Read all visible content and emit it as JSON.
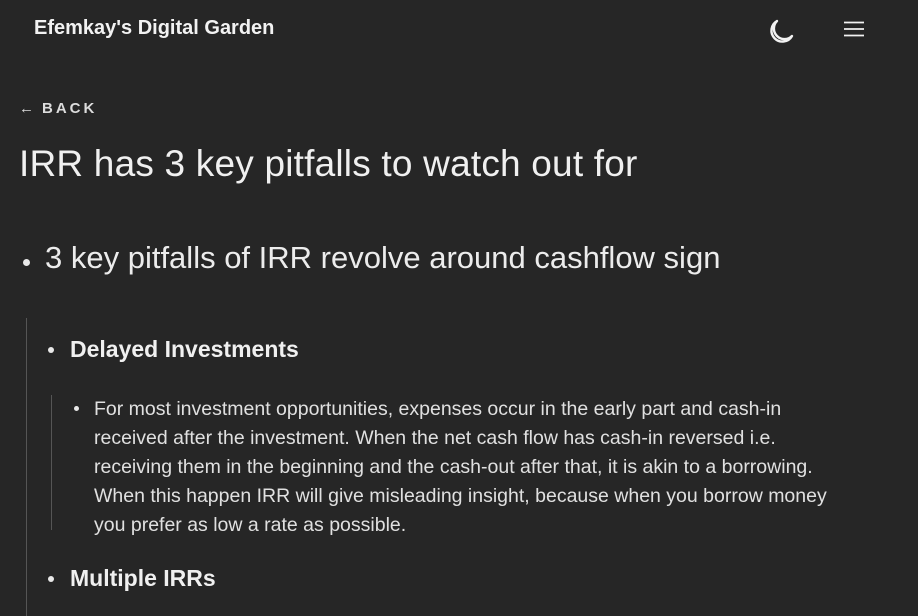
{
  "header": {
    "site_title": "Efemkay's Digital Garden",
    "theme_toggle_icon": "moon-icon",
    "menu_icon": "hamburger-menu-icon"
  },
  "nav": {
    "back_arrow": "←",
    "back_label": "BACK"
  },
  "page": {
    "title": "IRR has 3 key pitfalls to watch out for"
  },
  "outline": {
    "level1": "3 key pitfalls of IRR revolve around cashflow sign",
    "items": [
      {
        "heading": "Delayed Investments",
        "detail_lines": [
          "For most investment opportunities, expenses occur in the early part and cash-in",
          "received after the investment. When the net cash flow has cash-in reversed i.e.",
          "receiving them in the beginning and the cash-out after that, it is akin to a borrowing.",
          "When this happen IRR will give misleading insight, because when you borrow money",
          "you prefer as low a rate as possible."
        ]
      },
      {
        "heading": "Multiple IRRs"
      }
    ]
  },
  "colors": {
    "background": "#262626",
    "text": "#ececec",
    "guide_line": "#555555"
  }
}
